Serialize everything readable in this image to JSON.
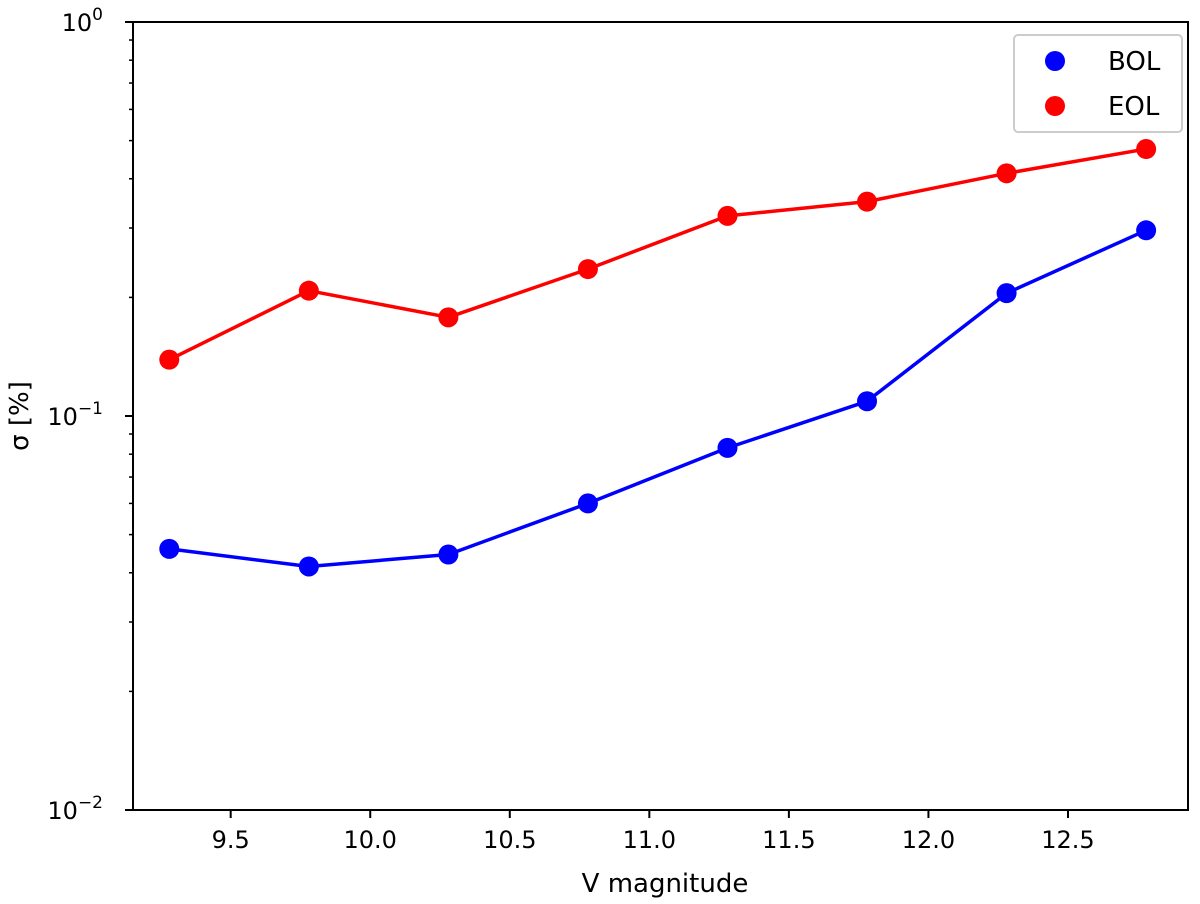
{
  "chart_data": {
    "type": "line",
    "xlabel": "V magnitude",
    "ylabel": "σ [%]",
    "yscale": "log",
    "xlim": [
      9.15,
      12.93
    ],
    "ylim": [
      0.01,
      1
    ],
    "xticks": [
      {
        "value": 9.5,
        "label": "9.5"
      },
      {
        "value": 10.0,
        "label": "10.0"
      },
      {
        "value": 10.5,
        "label": "10.5"
      },
      {
        "value": 11.0,
        "label": "11.0"
      },
      {
        "value": 11.5,
        "label": "11.5"
      },
      {
        "value": 12.0,
        "label": "12.0"
      },
      {
        "value": 12.5,
        "label": "12.5"
      }
    ],
    "yticks": [
      {
        "value": 0.01,
        "base": "10",
        "exp": "−2"
      },
      {
        "value": 0.1,
        "base": "10",
        "exp": "−1"
      },
      {
        "value": 1,
        "base": "10",
        "exp": "0"
      }
    ],
    "x": [
      9.28,
      9.78,
      10.28,
      10.78,
      11.28,
      11.78,
      12.28,
      12.78
    ],
    "series": [
      {
        "name": "BOL",
        "color": "#0000ff",
        "values": [
          0.046,
          0.0415,
          0.0445,
          0.06,
          0.083,
          0.109,
          0.205,
          0.296
        ]
      },
      {
        "name": "EOL",
        "color": "#ff0000",
        "values": [
          0.139,
          0.208,
          0.178,
          0.236,
          0.322,
          0.35,
          0.413,
          0.476
        ]
      }
    ],
    "legend_position": "top-right",
    "grid": false
  }
}
